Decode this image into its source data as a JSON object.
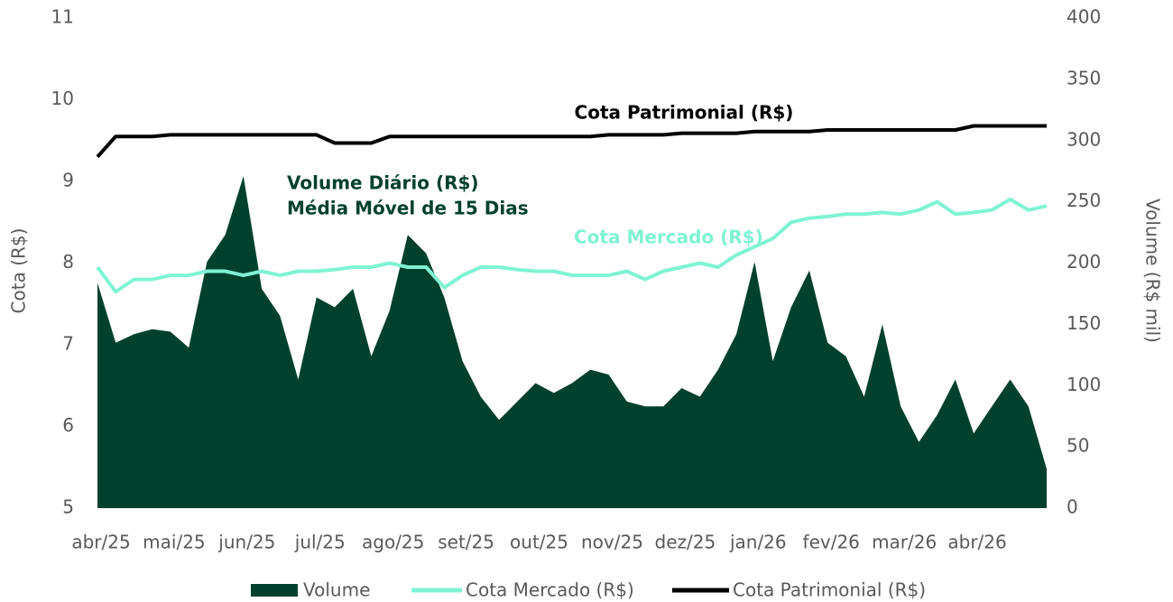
{
  "chart_data": {
    "type": "line",
    "x": [
      0,
      0.25,
      0.5,
      0.75,
      1,
      1.25,
      1.5,
      1.75,
      2,
      2.25,
      2.5,
      2.75,
      3,
      3.25,
      3.5,
      3.75,
      4,
      4.25,
      4.5,
      4.75,
      5,
      5.25,
      5.5,
      5.75,
      6,
      6.25,
      6.5,
      6.75,
      7,
      7.25,
      7.5,
      7.75,
      8,
      8.25,
      8.5,
      8.75,
      9,
      9.25,
      9.5,
      9.75,
      10,
      10.25,
      10.5,
      10.75,
      11,
      11.25,
      11.5,
      11.75,
      12,
      12.25,
      12.5,
      12.75,
      13
    ],
    "xlim": [
      0,
      13
    ],
    "xticks": [
      {
        "value": 0,
        "label": "abr/25"
      },
      {
        "value": 1,
        "label": "mai/25"
      },
      {
        "value": 2,
        "label": "jun/25"
      },
      {
        "value": 3,
        "label": "jul/25"
      },
      {
        "value": 4,
        "label": "ago/25"
      },
      {
        "value": 5,
        "label": "set/25"
      },
      {
        "value": 6,
        "label": "out/25"
      },
      {
        "value": 7,
        "label": "nov/25"
      },
      {
        "value": 8,
        "label": "dez/25"
      },
      {
        "value": 9,
        "label": "jan/26"
      },
      {
        "value": 10,
        "label": "fev/26"
      },
      {
        "value": 11,
        "label": "mar/26"
      },
      {
        "value": 12,
        "label": "abr/26"
      }
    ],
    "ylabel": "Cota (R$)",
    "y2label": "Volume (R$ mil)",
    "ylim": [
      5,
      11
    ],
    "yticks": [
      5,
      6,
      7,
      8,
      9,
      10,
      11
    ],
    "y2lim": [
      0,
      400
    ],
    "y2ticks": [
      0,
      50,
      100,
      150,
      200,
      250,
      300,
      350,
      400
    ],
    "annotations": [
      "Cota Patrimonial (R$)",
      "Volume Diário (R$)",
      "Média Móvel de 15 Dias",
      "Cota Mercado (R$)"
    ],
    "series": [
      {
        "name": "Volume",
        "type": "area",
        "axis": "y2",
        "color": "#00412d",
        "values": [
          184,
          135,
          142,
          146,
          144,
          131,
          201,
          223,
          271,
          179,
          157,
          105,
          172,
          164,
          179,
          124,
          161,
          223,
          208,
          172,
          120,
          91,
          72,
          87,
          102,
          94,
          102,
          113,
          109,
          87,
          83,
          83,
          98,
          91,
          113,
          142,
          201,
          120,
          164,
          194,
          135,
          124,
          91,
          150,
          83,
          54,
          76,
          105,
          61,
          83,
          105,
          83,
          32
        ]
      },
      {
        "name": "Cota Mercado (R$)",
        "type": "line",
        "color": "#7ff3d4",
        "values": [
          7.95,
          7.65,
          7.8,
          7.8,
          7.85,
          7.85,
          7.9,
          7.9,
          7.85,
          7.9,
          7.85,
          7.9,
          7.9,
          7.92,
          7.95,
          7.95,
          8.0,
          7.95,
          7.95,
          7.7,
          7.85,
          7.95,
          7.95,
          7.92,
          7.9,
          7.9,
          7.85,
          7.85,
          7.85,
          7.9,
          7.8,
          7.9,
          7.95,
          8.0,
          7.95,
          8.1,
          8.2,
          8.3,
          8.5,
          8.55,
          8.57,
          8.6,
          8.6,
          8.62,
          8.6,
          8.65,
          8.75,
          8.6,
          8.62,
          8.65,
          8.78,
          8.65,
          8.7
        ]
      },
      {
        "name": "Cota Patrimonial (R$)",
        "type": "line",
        "color": "#000000",
        "values": [
          9.3,
          9.55,
          9.55,
          9.55,
          9.57,
          9.57,
          9.57,
          9.57,
          9.57,
          9.57,
          9.57,
          9.57,
          9.57,
          9.47,
          9.47,
          9.47,
          9.55,
          9.55,
          9.55,
          9.55,
          9.55,
          9.55,
          9.55,
          9.55,
          9.55,
          9.55,
          9.55,
          9.55,
          9.57,
          9.57,
          9.57,
          9.57,
          9.59,
          9.59,
          9.59,
          9.59,
          9.61,
          9.61,
          9.61,
          9.61,
          9.63,
          9.63,
          9.63,
          9.63,
          9.63,
          9.63,
          9.63,
          9.63,
          9.68,
          9.68,
          9.68,
          9.68,
          9.68
        ]
      }
    ]
  }
}
